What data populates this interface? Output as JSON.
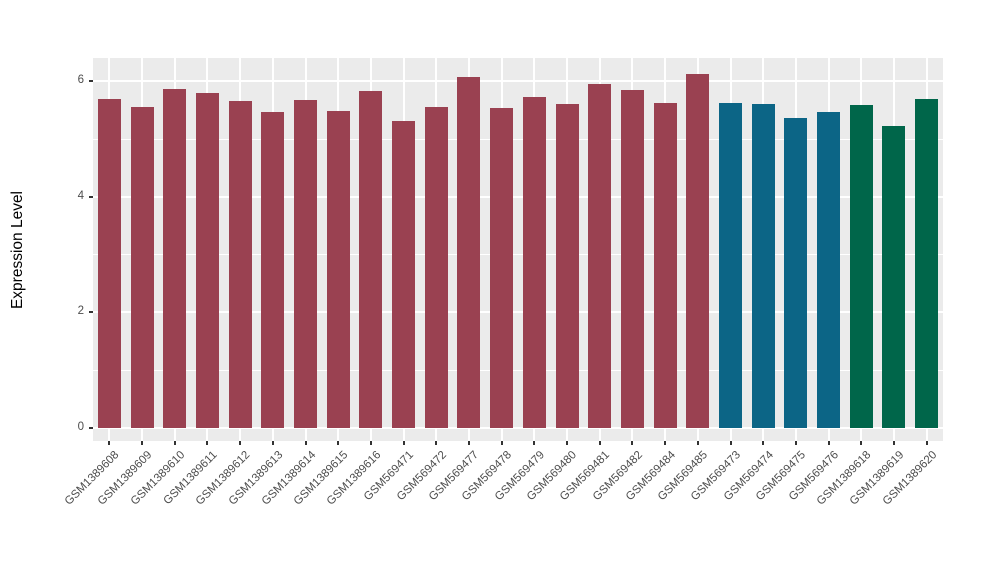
{
  "figure": {
    "background": "#FFFFFF",
    "panel_background": "#EBEBEB",
    "grid_color": "#FFFFFF",
    "tick_mark_color": "#333333",
    "axis_text_color": "#4D4D4D",
    "axis_title_color": "#000000"
  },
  "chart_data": {
    "type": "bar",
    "title": "",
    "xlabel": "",
    "ylabel": "Expression Level",
    "ylim": [
      -0.25,
      6.45
    ],
    "yticks": [
      0,
      2,
      4,
      6
    ],
    "yticks_minor": [
      1,
      3,
      5
    ],
    "grid": true,
    "legend_position": "none",
    "x_label_rotation_deg": 45,
    "categories": [
      "GSM1389608",
      "GSM1389609",
      "GSM1389610",
      "GSM1389611",
      "GSM1389612",
      "GSM1389613",
      "GSM1389614",
      "GSM1389615",
      "GSM1389616",
      "GSM569471",
      "GSM569472",
      "GSM569477",
      "GSM569478",
      "GSM569479",
      "GSM569480",
      "GSM569481",
      "GSM569482",
      "GSM569484",
      "GSM569485",
      "GSM569473",
      "GSM569474",
      "GSM569475",
      "GSM569476",
      "GSM1389618",
      "GSM1389619",
      "GSM1389620"
    ],
    "values": [
      5.7,
      5.55,
      5.87,
      5.79,
      5.66,
      5.47,
      5.68,
      5.49,
      5.83,
      5.32,
      5.55,
      6.07,
      5.53,
      5.73,
      5.6,
      5.95,
      5.85,
      5.62,
      6.12,
      5.62,
      5.61,
      5.36,
      5.46,
      5.59,
      5.22,
      5.69
    ],
    "groups": [
      "group-a",
      "group-a",
      "group-a",
      "group-a",
      "group-a",
      "group-a",
      "group-a",
      "group-a",
      "group-a",
      "group-a",
      "group-a",
      "group-a",
      "group-a",
      "group-a",
      "group-a",
      "group-a",
      "group-a",
      "group-a",
      "group-a",
      "group-b",
      "group-b",
      "group-b",
      "group-b",
      "group-c",
      "group-c",
      "group-c"
    ],
    "group_colors": {
      "group-a": "#9A4151",
      "group-b": "#0C6586",
      "group-c": "#00664A"
    }
  }
}
